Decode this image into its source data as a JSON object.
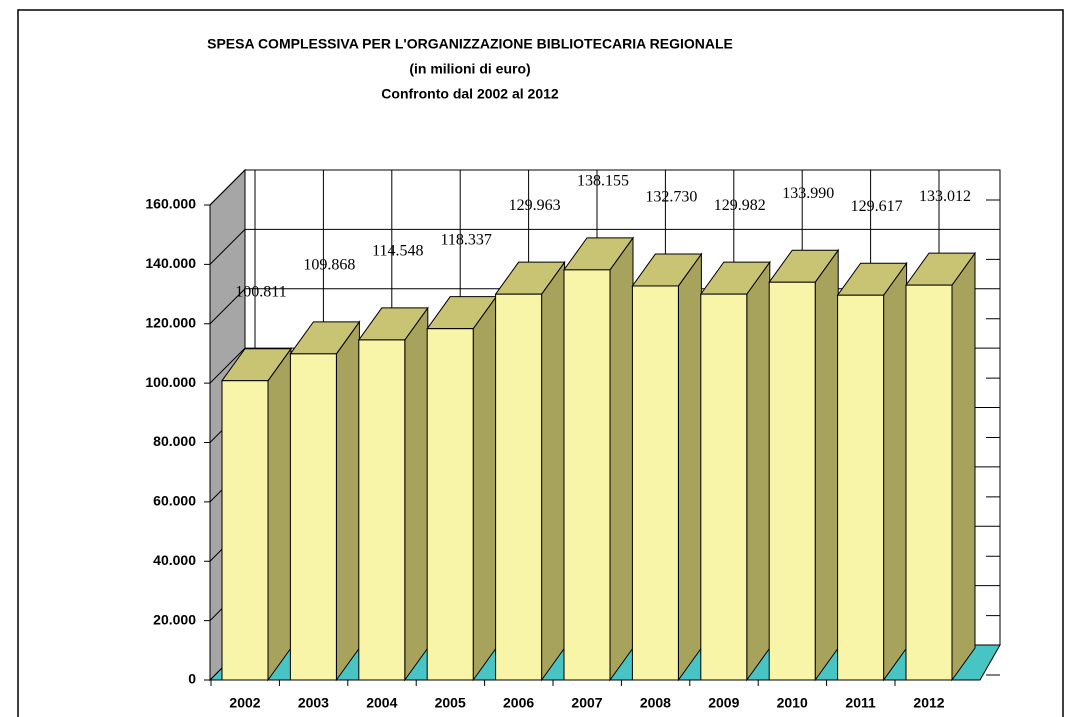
{
  "chart_data": {
    "type": "bar3d",
    "title": "SPESA COMPLESSIVA  PER L'ORGANIZZAZIONE  BIBLIOTECARIA  REGIONALE",
    "subtitle": "(in milioni di   euro)",
    "subtitle2": "Confronto dal 2002 al 2012",
    "categories": [
      "2002",
      "2003",
      "2004",
      "2005",
      "2006",
      "2007",
      "2008",
      "2009",
      "2010",
      "2011",
      "2012"
    ],
    "values": [
      100811,
      109868,
      114548,
      118337,
      129963,
      138155,
      132730,
      129982,
      133990,
      129617,
      133012
    ],
    "value_labels": [
      "100.811",
      "109.868",
      "114.548",
      "118.337",
      "129.963",
      "138.155",
      "132.730",
      "129.982",
      "133.990",
      "129.617",
      "133.012"
    ],
    "color": "#f8f4a8",
    "ylim": [
      0,
      160000
    ],
    "yticks": [
      0,
      {
        "value": 20000,
        "label": "20.000"
      },
      {
        "value": 40000,
        "label": "40.000"
      },
      {
        "value": 60000,
        "label": "60.000"
      },
      {
        "value": 80000,
        "label": "80.000"
      },
      {
        "value": 100000,
        "label": "100.000"
      },
      {
        "value": 120000,
        "label": "120.000"
      },
      {
        "value": 140000,
        "label": "140.000"
      },
      {
        "value": 160000,
        "label": "160.000"
      }
    ],
    "grid": true
  }
}
